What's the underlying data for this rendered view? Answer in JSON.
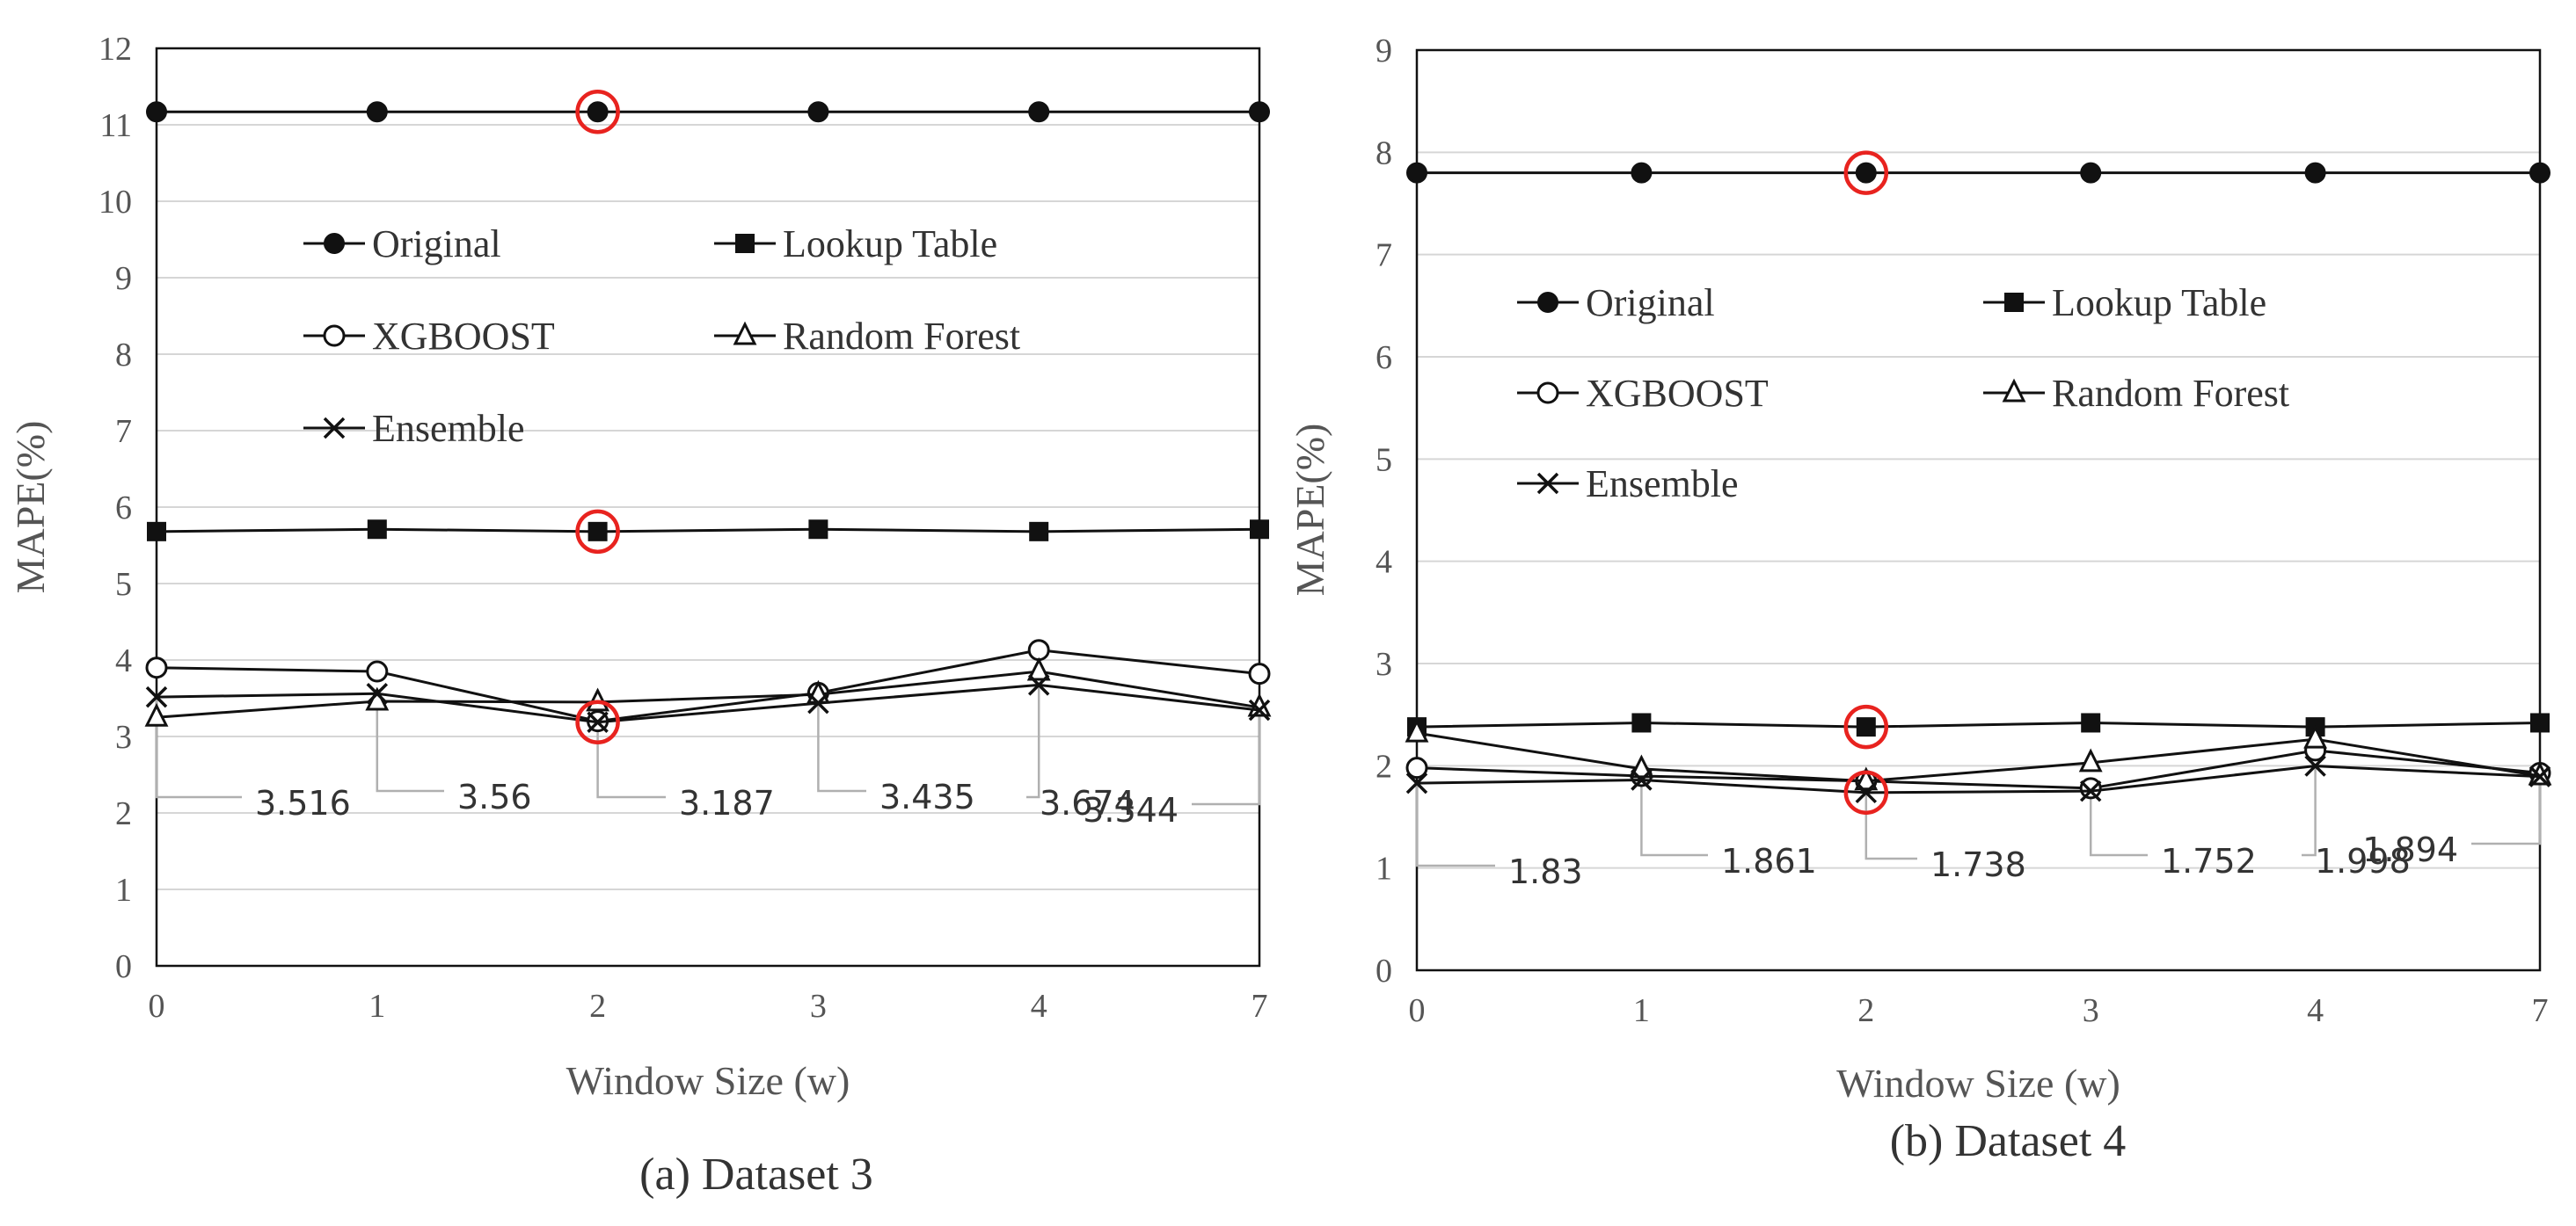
{
  "chart_data": [
    {
      "type": "line",
      "caption": "(a) Dataset 3",
      "xlabel": "Window Size (w)",
      "ylabel": "MAPE(%)",
      "ylim": [
        0,
        12
      ],
      "yticks": [
        "0",
        "1",
        "2",
        "3",
        "4",
        "5",
        "6",
        "7",
        "8",
        "9",
        "10",
        "11",
        "12"
      ],
      "categories": [
        "0",
        "1",
        "2",
        "3",
        "4",
        "7"
      ],
      "grid": "horizontal",
      "legend_position": "upper-left",
      "series": [
        {
          "name": "Original",
          "marker": "filled-circle",
          "values": [
            11.17,
            11.17,
            11.17,
            11.17,
            11.17,
            11.17
          ]
        },
        {
          "name": "Lookup Table",
          "marker": "filled-square",
          "values": [
            5.68,
            5.71,
            5.68,
            5.71,
            5.68,
            5.71
          ]
        },
        {
          "name": "XGBOOST",
          "marker": "open-circle",
          "values": [
            3.9,
            3.85,
            3.2,
            3.57,
            4.13,
            3.82
          ]
        },
        {
          "name": "Random Forest",
          "marker": "open-triangle",
          "values": [
            3.25,
            3.46,
            3.45,
            3.55,
            3.85,
            3.38
          ]
        },
        {
          "name": "Ensemble",
          "marker": "x",
          "values": [
            3.516,
            3.56,
            3.187,
            3.435,
            3.674,
            3.344
          ]
        }
      ],
      "data_labels": [
        "3.516",
        "3.56",
        "3.187",
        "3.435",
        "3.674",
        "3.344"
      ],
      "highlighted_category": "2",
      "highlighted_series": [
        "Original",
        "Lookup Table",
        "Ensemble"
      ],
      "highlight_color": "#e8231f"
    },
    {
      "type": "line",
      "caption": "(b) Dataset 4",
      "xlabel": "Window Size (w)",
      "ylabel": "MAPE(%)",
      "ylim": [
        0,
        9
      ],
      "yticks": [
        "0",
        "1",
        "2",
        "3",
        "4",
        "5",
        "6",
        "7",
        "8",
        "9"
      ],
      "categories": [
        "0",
        "1",
        "2",
        "3",
        "4",
        "7"
      ],
      "grid": "horizontal",
      "legend_position": "upper-left",
      "series": [
        {
          "name": "Original",
          "marker": "filled-circle",
          "values": [
            7.8,
            7.8,
            7.8,
            7.8,
            7.8,
            7.8
          ]
        },
        {
          "name": "Lookup Table",
          "marker": "filled-square",
          "values": [
            2.38,
            2.42,
            2.38,
            2.42,
            2.38,
            2.42
          ]
        },
        {
          "name": "XGBOOST",
          "marker": "open-circle",
          "values": [
            1.98,
            1.9,
            1.85,
            1.78,
            2.15,
            1.93
          ]
        },
        {
          "name": "Random Forest",
          "marker": "open-triangle",
          "values": [
            2.32,
            1.97,
            1.85,
            2.03,
            2.26,
            1.9
          ]
        },
        {
          "name": "Ensemble",
          "marker": "x",
          "values": [
            1.83,
            1.861,
            1.738,
            1.752,
            1.998,
            1.894
          ]
        }
      ],
      "data_labels": [
        "1.83",
        "1.861",
        "1.738",
        "1.752",
        "1.998",
        "1.894"
      ],
      "highlighted_category": "2",
      "highlighted_series": [
        "Original",
        "Lookup Table",
        "Ensemble"
      ],
      "highlight_color": "#e8231f"
    }
  ]
}
